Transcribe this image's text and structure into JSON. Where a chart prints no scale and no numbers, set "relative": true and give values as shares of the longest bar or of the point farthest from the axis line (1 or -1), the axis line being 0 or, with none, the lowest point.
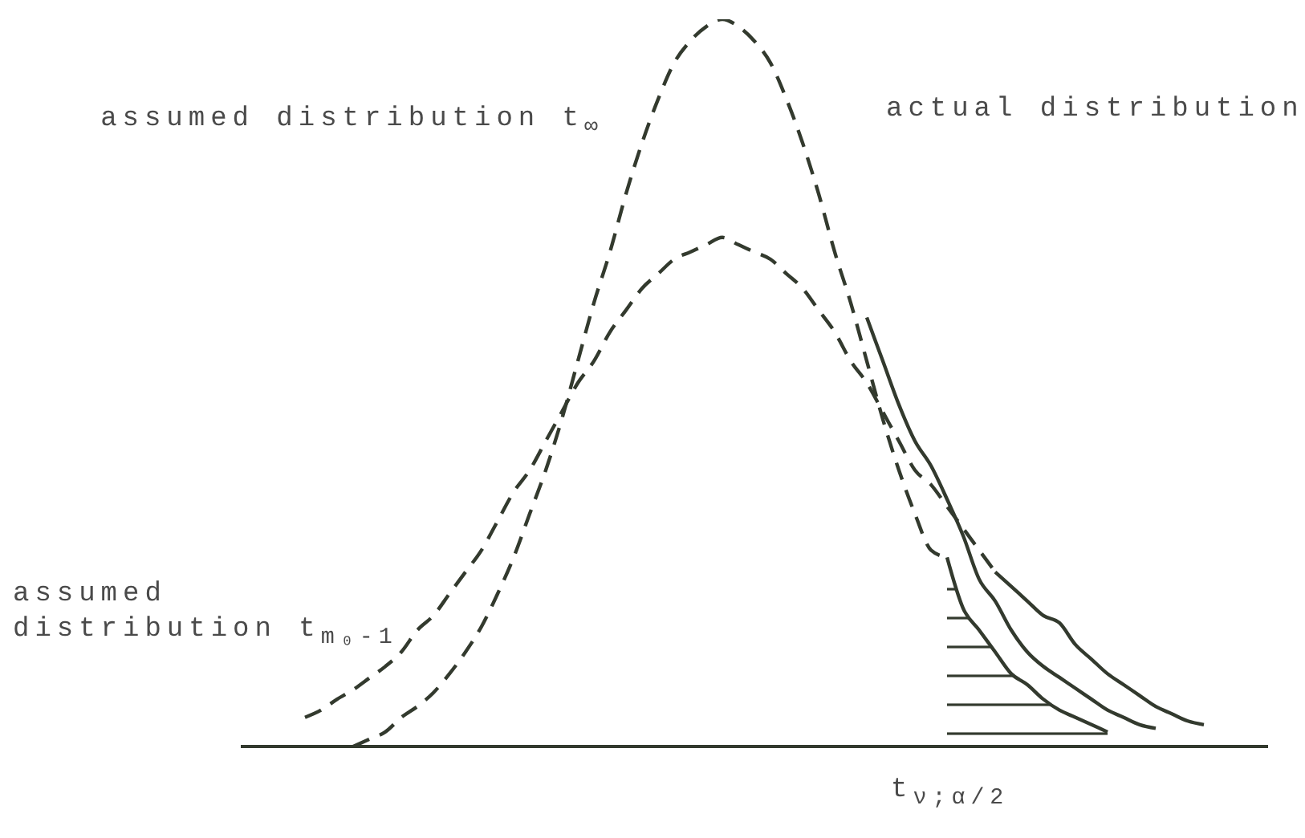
{
  "chart_data": {
    "type": "line",
    "relative": true,
    "categories": [
      null,
      null,
      null,
      null,
      null,
      null,
      null,
      null,
      null,
      null,
      null,
      null,
      null,
      null,
      null,
      null,
      null,
      null,
      null,
      null,
      null,
      null,
      null,
      null,
      null,
      null,
      null,
      null,
      null,
      null,
      null,
      null,
      null,
      null,
      null,
      null,
      null,
      null,
      null,
      null,
      null,
      null,
      null,
      null,
      null,
      null,
      null,
      null,
      null,
      null,
      null,
      null,
      null,
      null,
      null,
      null,
      null,
      null,
      null,
      null,
      null,
      null,
      null,
      null,
      null
    ],
    "series": [
      {
        "line_style": "dashed",
        "color": "#333a2e",
        "values": [
          null,
          null,
          null,
          null,
          null,
          null,
          null,
          0,
          0.01,
          0.02,
          0.04,
          0.055,
          0.074,
          0.1,
          0.13,
          0.165,
          0.21,
          0.26,
          0.32,
          0.38,
          0.45,
          0.53,
          0.61,
          0.68,
          0.76,
          0.83,
          0.89,
          0.94,
          0.97,
          0.99,
          1,
          0.99,
          0.97,
          0.94,
          0.89,
          0.83,
          0.76,
          0.68,
          0.61,
          0.53,
          0.45,
          0.38,
          0.32,
          0.27,
          0.26,
          null,
          null,
          null,
          null,
          null,
          null,
          null,
          null,
          null,
          null,
          null,
          null,
          null,
          null,
          null,
          null,
          null,
          null,
          null,
          null
        ]
      },
      {
        "type": "area",
        "line_style": "solid",
        "color": "#333a2e",
        "values": [
          null,
          null,
          null,
          null,
          null,
          null,
          null,
          null,
          null,
          null,
          null,
          null,
          null,
          null,
          null,
          null,
          null,
          null,
          null,
          null,
          null,
          null,
          null,
          null,
          null,
          null,
          null,
          null,
          null,
          null,
          null,
          null,
          null,
          null,
          null,
          null,
          null,
          null,
          null,
          null,
          null,
          null,
          null,
          null,
          0.26,
          0.19,
          0.16,
          0.13,
          0.1,
          0.085,
          0.065,
          0.05,
          0.04,
          0.03,
          0.02,
          null,
          null,
          null,
          null,
          null,
          null,
          null,
          null,
          null,
          null
        ]
      },
      {
        "line_style": "dashed",
        "color": "#333a2e",
        "values": [
          null,
          null,
          null,
          null,
          0.04,
          0.05,
          0.065,
          0.078,
          0.094,
          0.11,
          0.13,
          0.16,
          0.18,
          0.21,
          0.24,
          0.27,
          0.31,
          0.35,
          0.38,
          0.42,
          0.46,
          0.5,
          0.53,
          0.57,
          0.6,
          0.63,
          0.65,
          0.67,
          0.68,
          0.69,
          0.7,
          0.69,
          0.68,
          0.67,
          0.65,
          0.63,
          0.6,
          0.57,
          0.53,
          0.5,
          0.46,
          0.42,
          0.38,
          0.36,
          0.33,
          0.3,
          0.27,
          0.24,
          null,
          null,
          null,
          null,
          null,
          null,
          null,
          null,
          null,
          null,
          null,
          null,
          null,
          null,
          null,
          null,
          null
        ]
      },
      {
        "line_style": "solid",
        "color": "#333a2e",
        "values": [
          null,
          null,
          null,
          null,
          null,
          null,
          null,
          null,
          null,
          null,
          null,
          null,
          null,
          null,
          null,
          null,
          null,
          null,
          null,
          null,
          null,
          null,
          null,
          null,
          null,
          null,
          null,
          null,
          null,
          null,
          null,
          null,
          null,
          null,
          null,
          null,
          null,
          null,
          null,
          null,
          null,
          null,
          null,
          null,
          null,
          null,
          null,
          0.24,
          0.22,
          0.2,
          0.18,
          0.17,
          0.14,
          0.12,
          0.1,
          0.085,
          0.07,
          0.055,
          0.045,
          0.035,
          0.03,
          null,
          null,
          null,
          null
        ]
      },
      {
        "line_style": "solid",
        "color": "#333a2e",
        "values": [
          null,
          null,
          null,
          null,
          null,
          null,
          null,
          null,
          null,
          null,
          null,
          null,
          null,
          null,
          null,
          null,
          null,
          null,
          null,
          null,
          null,
          null,
          null,
          null,
          null,
          null,
          null,
          null,
          null,
          null,
          null,
          null,
          null,
          null,
          null,
          null,
          null,
          null,
          null,
          0.59,
          0.53,
          0.47,
          0.42,
          0.386,
          0.34,
          0.29,
          0.23,
          0.2,
          0.16,
          0.13,
          0.11,
          0.095,
          0.08,
          0.065,
          0.05,
          0.04,
          0.03,
          0.025,
          null,
          null,
          null,
          null,
          null,
          null,
          null
        ]
      }
    ],
    "annotations": [
      "assumed distribution t$_{∞}$",
      "actual distribution",
      "assumed distribution t$_{m₀-1}$",
      "t$_{ν;α/2}$"
    ]
  }
}
